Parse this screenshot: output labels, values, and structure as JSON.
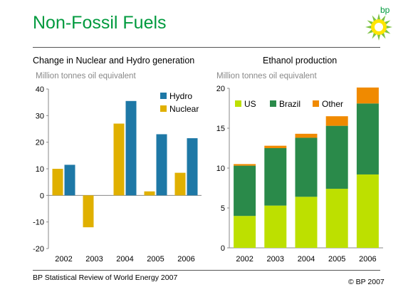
{
  "title": "Non-Fossil Fuels",
  "logo_text": "bp",
  "footer_left": "BP Statistical Review of World Energy 2007",
  "footer_right": "© BP 2007",
  "colors": {
    "brand_green": "#009a3e",
    "nuclear": "#e0b000",
    "hydro": "#1e78a6",
    "us": "#bde000",
    "brazil": "#2a8a4a",
    "other": "#f08a00"
  },
  "chart_data": [
    {
      "type": "bar",
      "title": "Change in Nuclear and Hydro generation",
      "ylabel": "Million tonnes oil equivalent",
      "categories": [
        "2002",
        "2003",
        "2004",
        "2005",
        "2006"
      ],
      "ylim": [
        -20,
        40
      ],
      "yticks": [
        "40",
        "30",
        "20",
        "10",
        "0",
        "-10",
        "-20"
      ],
      "legend": "top-right",
      "series": [
        {
          "name": "Hydro",
          "values": [
            11.5,
            0,
            35.5,
            23,
            21.5
          ]
        },
        {
          "name": "Nuclear",
          "values": [
            10,
            -12,
            27,
            1.5,
            8.5
          ]
        }
      ]
    },
    {
      "type": "bar",
      "stacked": true,
      "title": "Ethanol production",
      "ylabel": "Million tonnes oil equivalent",
      "categories": [
        "2002",
        "2003",
        "2004",
        "2005",
        "2006"
      ],
      "ylim": [
        0,
        20
      ],
      "yticks": [
        "20",
        "15",
        "10",
        "5",
        "0"
      ],
      "legend": "top",
      "series": [
        {
          "name": "US",
          "values": [
            4.0,
            5.3,
            6.4,
            7.4,
            9.2
          ]
        },
        {
          "name": "Brazil",
          "values": [
            6.3,
            7.2,
            7.4,
            7.9,
            8.9
          ]
        },
        {
          "name": "Other",
          "values": [
            0.2,
            0.3,
            0.5,
            1.2,
            2.0
          ]
        }
      ]
    }
  ]
}
